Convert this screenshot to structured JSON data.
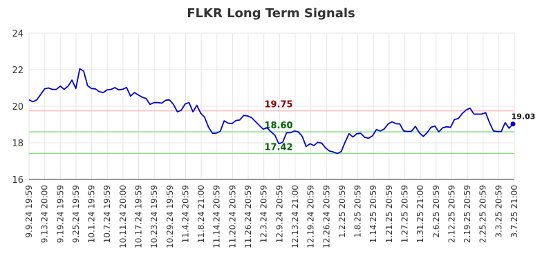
{
  "chart_data": {
    "type": "line",
    "title": "FLKR Long Term Signals",
    "xlabel": "",
    "ylabel": "",
    "ylim": [
      16,
      24
    ],
    "yticks": [
      16,
      18,
      20,
      22,
      24
    ],
    "grid": true,
    "x_tick_labels": [
      "9.9.24 19:59",
      "9.13.24 20:00",
      "9.19.24 19:59",
      "9.25.24 19:59",
      "10.1.24 19:59",
      "10.7.24 19:59",
      "10.11.24 20:00",
      "10.17.24 19:59",
      "10.23.24 19:59",
      "10.29.24 19:59",
      "11.4.24 20:59",
      "11.8.24 21:00",
      "11.14.24 20:59",
      "11.20.24 20:59",
      "11.26.24 20:59",
      "12.3.24 20:59",
      "12.9.24 20:59",
      "12.13.24 21:00",
      "12.19.24 20:59",
      "12.26.24 20:59",
      "1.2.25 20:59",
      "1.8.25 20:59",
      "1.14.25 20:59",
      "1.21.25 20:59",
      "1.27.25 20:59",
      "1.31.25 21:00",
      "2.6.25 20:59",
      "2.12.25 20:59",
      "2.19.25 20:59",
      "2.25.25 20:59",
      "3.3.25 20:59",
      "3.7.25 21:00"
    ],
    "series": [
      {
        "values": [
          20.35,
          20.25,
          20.35,
          20.65,
          20.95,
          21.0,
          20.92,
          20.92,
          21.1,
          20.93,
          21.1,
          21.43,
          20.97,
          22.05,
          21.92,
          21.13,
          20.97,
          20.95,
          20.8,
          20.75,
          20.9,
          20.92,
          21.02,
          20.9,
          20.93,
          21.03,
          20.55,
          20.75,
          20.62,
          20.5,
          20.42,
          20.1,
          20.2,
          20.2,
          20.17,
          20.33,
          20.35,
          20.1,
          19.7,
          19.78,
          20.13,
          20.2,
          19.7,
          20.05,
          19.62,
          19.4,
          18.85,
          18.52,
          18.53,
          18.63,
          19.2,
          19.08,
          19.05,
          19.22,
          19.25,
          19.5,
          19.47,
          19.38,
          19.17,
          18.95,
          18.75,
          18.82,
          18.6,
          18.42,
          17.95,
          18.03,
          18.55,
          18.55,
          18.65,
          18.6,
          18.35,
          17.8,
          17.95,
          17.85,
          18.03,
          17.98,
          17.72,
          17.55,
          17.5,
          17.42,
          17.52,
          18.05,
          18.5,
          18.32,
          18.5,
          18.52,
          18.3,
          18.25,
          18.38,
          18.72,
          18.65,
          18.75,
          19.03,
          19.15,
          19.05,
          19.03,
          18.65,
          18.62,
          18.63,
          18.9,
          18.55,
          18.35,
          18.55,
          18.85,
          18.92,
          18.6,
          18.82,
          18.88,
          18.85,
          19.27,
          19.33,
          19.6,
          19.8,
          19.9,
          19.57,
          19.57,
          19.57,
          19.65,
          19.1,
          18.65,
          18.62,
          18.62,
          19.1,
          18.8,
          19.03
        ],
        "color": "#0000cc"
      }
    ],
    "hlines": [
      {
        "value": 19.75,
        "label": "19.75",
        "line_color": "#ffbbbb",
        "label_color": "#8b0000"
      },
      {
        "value": 18.6,
        "label": "18.60",
        "line_color": "#88dd88",
        "label_color": "#006400"
      },
      {
        "value": 17.42,
        "label": "17.42",
        "line_color": "#88dd88",
        "label_color": "#006400"
      }
    ],
    "last_value_label": "19.03"
  }
}
